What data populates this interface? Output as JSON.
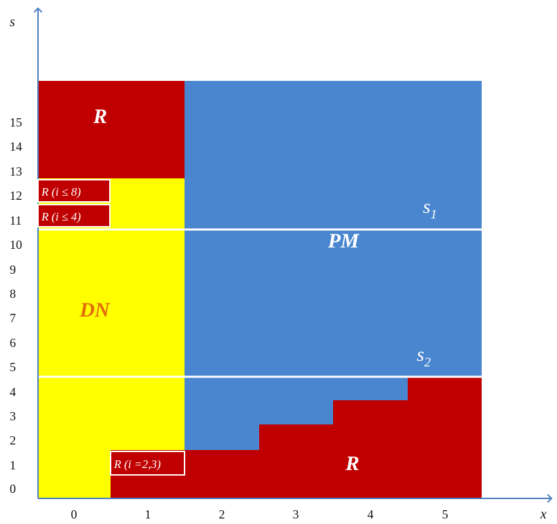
{
  "axes": {
    "x_label": "x",
    "y_label": "s",
    "x_ticks": [
      "0",
      "1",
      "2",
      "3",
      "4",
      "5"
    ],
    "y_ticks": [
      "0",
      "1",
      "2",
      "3",
      "4",
      "5",
      "6",
      "7",
      "8",
      "9",
      "10",
      "11",
      "12",
      "13",
      "14",
      "15"
    ]
  },
  "regions": {
    "r_top": "R",
    "pm": "PM",
    "dn": "DN",
    "r_bottom": "R"
  },
  "conditions": {
    "c1": "R (i ≤ 8)",
    "c2": "R (i ≤ 4)",
    "c3": "R (i =2,3)"
  },
  "threshold_lines": [
    {
      "name": "s",
      "sub": "1",
      "s_value": 10.5
    },
    {
      "name": "s",
      "sub": "2",
      "s_value": 4.5
    }
  ],
  "colors": {
    "r": "#C00000",
    "pm": "#4A86CF",
    "dn": "#FFFF00",
    "axis": "#4A7EC0",
    "threshold": "#FFFFFF",
    "dn_text": "#E36C0A"
  }
}
